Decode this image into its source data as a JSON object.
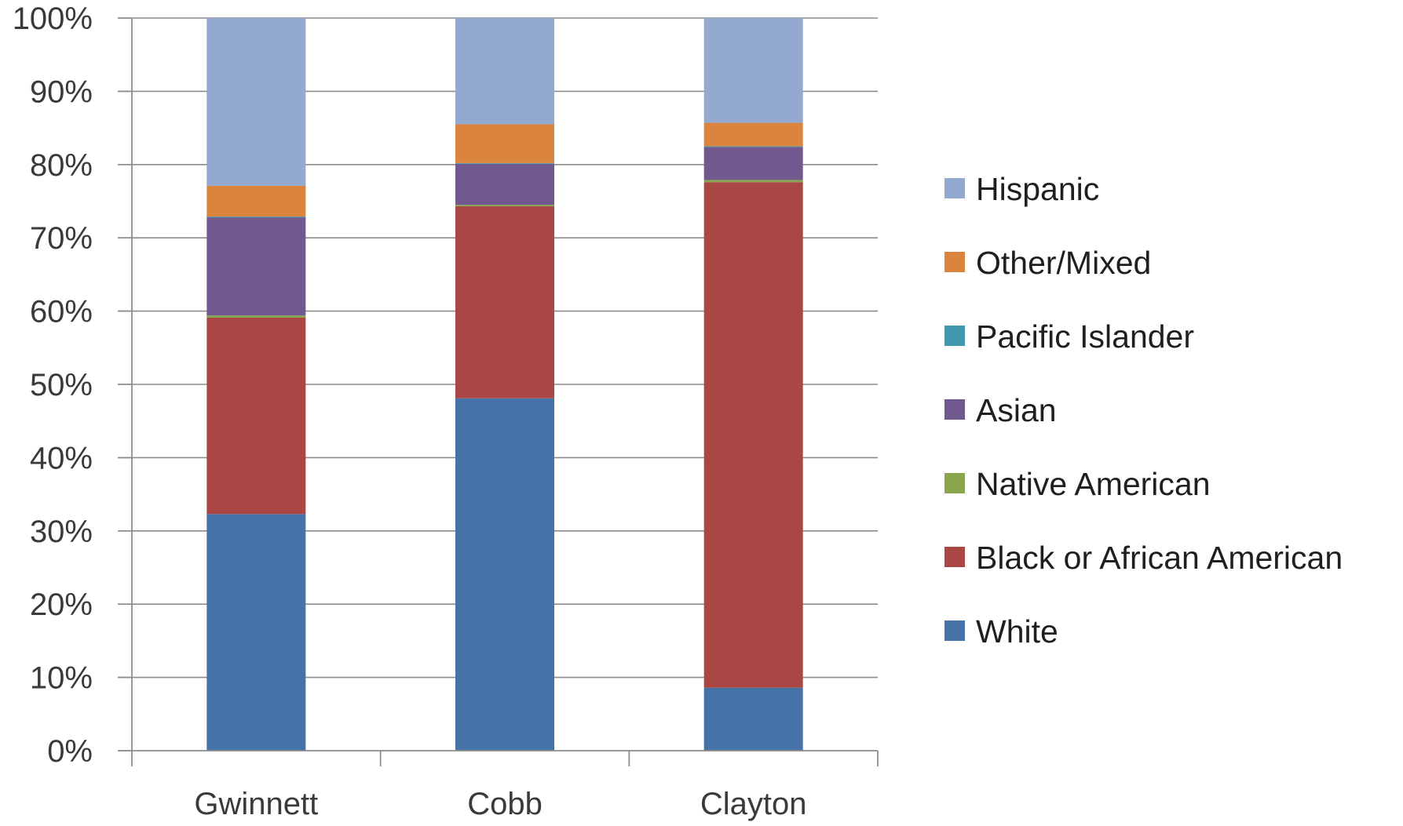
{
  "chart_data": {
    "type": "bar",
    "stacked": true,
    "percent_axis": true,
    "categories": [
      "Gwinnett",
      "Cobb",
      "Clayton"
    ],
    "ylim": [
      0,
      100
    ],
    "y_ticks": [
      0,
      10,
      20,
      30,
      40,
      50,
      60,
      70,
      80,
      90,
      100
    ],
    "y_tick_labels": [
      "0%",
      "10%",
      "20%",
      "30%",
      "40%",
      "50%",
      "60%",
      "70%",
      "80%",
      "90%",
      "100%"
    ],
    "grid": true,
    "legend_position": "right",
    "series": [
      {
        "name": "White",
        "color": "#4572A7",
        "values": [
          32.3,
          48.1,
          8.6
        ]
      },
      {
        "name": "Black or African American",
        "color": "#AA4643",
        "values": [
          26.8,
          26.2,
          69.0
        ]
      },
      {
        "name": "Native American",
        "color": "#89A54E",
        "values": [
          0.3,
          0.2,
          0.3
        ]
      },
      {
        "name": "Asian",
        "color": "#71588F",
        "values": [
          13.4,
          5.6,
          4.5
        ]
      },
      {
        "name": "Pacific Islander",
        "color": "#4198AF",
        "values": [
          0.1,
          0.1,
          0.1
        ]
      },
      {
        "name": "Other/Mixed",
        "color": "#DB843D",
        "values": [
          4.2,
          5.3,
          3.2
        ]
      },
      {
        "name": "Hispanic",
        "color": "#93A9CF",
        "values": [
          22.9,
          14.5,
          14.3
        ]
      }
    ],
    "legend_order": [
      "Hispanic",
      "Other/Mixed",
      "Pacific Islander",
      "Asian",
      "Native American",
      "Black or African American",
      "White"
    ]
  }
}
